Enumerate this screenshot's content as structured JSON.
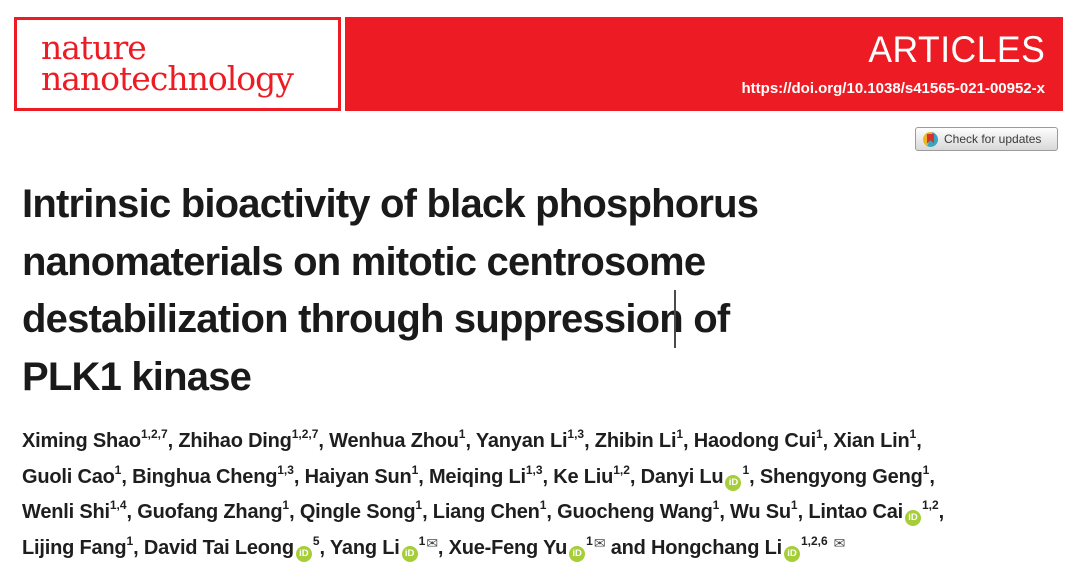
{
  "journal": {
    "name_line1": "nature",
    "name_line2": "nanotechnology"
  },
  "banner": {
    "section_label": "ARTICLES",
    "doi": "https://doi.org/10.1038/s41565-021-00952-x"
  },
  "check_for_updates": {
    "label": "Check for updates"
  },
  "title_lines": [
    "Intrinsic bioactivity of black phosphorus",
    "nanomaterials on mitotic centrosome",
    "destabilization through suppression of",
    "PLK1 kinase"
  ],
  "authors": [
    {
      "name": "Ximing Shao",
      "sup": "1,2,7",
      "orcid": false,
      "mail": false,
      "sep": ", ",
      "br": false
    },
    {
      "name": "Zhihao Ding",
      "sup": "1,2,7",
      "orcid": false,
      "mail": false,
      "sep": ", ",
      "br": false
    },
    {
      "name": "Wenhua Zhou",
      "sup": "1",
      "orcid": false,
      "mail": false,
      "sep": ", ",
      "br": false
    },
    {
      "name": "Yanyan Li",
      "sup": "1,3",
      "orcid": false,
      "mail": false,
      "sep": ", ",
      "br": false
    },
    {
      "name": "Zhibin Li",
      "sup": "1",
      "orcid": false,
      "mail": false,
      "sep": ", ",
      "br": false
    },
    {
      "name": "Haodong Cui",
      "sup": "1",
      "orcid": false,
      "mail": false,
      "sep": ", ",
      "br": false
    },
    {
      "name": "Xian Lin",
      "sup": "1",
      "orcid": false,
      "mail": false,
      "sep": ",",
      "br": true
    },
    {
      "name": "Guoli Cao",
      "sup": "1",
      "orcid": false,
      "mail": false,
      "sep": ", ",
      "br": false
    },
    {
      "name": "Binghua Cheng",
      "sup": "1,3",
      "orcid": false,
      "mail": false,
      "sep": ", ",
      "br": false
    },
    {
      "name": "Haiyan Sun",
      "sup": "1",
      "orcid": false,
      "mail": false,
      "sep": ", ",
      "br": false
    },
    {
      "name": "Meiqing Li",
      "sup": "1,3",
      "orcid": false,
      "mail": false,
      "sep": ", ",
      "br": false
    },
    {
      "name": "Ke Liu",
      "sup": "1,2",
      "orcid": false,
      "mail": false,
      "sep": ", ",
      "br": false
    },
    {
      "name": "Danyi Lu",
      "sup": "1",
      "orcid": true,
      "mail": false,
      "sep": ", ",
      "br": false
    },
    {
      "name": "Shengyong Geng",
      "sup": "1",
      "orcid": false,
      "mail": false,
      "sep": ",",
      "br": true
    },
    {
      "name": "Wenli Shi",
      "sup": "1,4",
      "orcid": false,
      "mail": false,
      "sep": ", ",
      "br": false
    },
    {
      "name": "Guofang Zhang",
      "sup": "1",
      "orcid": false,
      "mail": false,
      "sep": ", ",
      "br": false
    },
    {
      "name": "Qingle Song",
      "sup": "1",
      "orcid": false,
      "mail": false,
      "sep": ", ",
      "br": false
    },
    {
      "name": "Liang Chen",
      "sup": "1",
      "orcid": false,
      "mail": false,
      "sep": ", ",
      "br": false
    },
    {
      "name": "Guocheng Wang",
      "sup": "1",
      "orcid": false,
      "mail": false,
      "sep": ", ",
      "br": false
    },
    {
      "name": "Wu Su",
      "sup": "1",
      "orcid": false,
      "mail": false,
      "sep": ", ",
      "br": false
    },
    {
      "name": "Lintao Cai",
      "sup": "1,2",
      "orcid": true,
      "mail": false,
      "sep": ",",
      "br": true
    },
    {
      "name": "Lijing Fang",
      "sup": "1",
      "orcid": false,
      "mail": false,
      "sep": ", ",
      "br": false
    },
    {
      "name": "David Tai Leong",
      "sup": "5",
      "orcid": true,
      "mail": false,
      "sep": ", ",
      "br": false
    },
    {
      "name": "Yang Li",
      "sup": "1",
      "orcid": true,
      "mail": true,
      "sep": ", ",
      "br": false
    },
    {
      "name": "Xue-Feng Yu",
      "sup": "1",
      "orcid": true,
      "mail": true,
      "sep": " and ",
      "br": false
    },
    {
      "name": "Hongchang Li",
      "sup": "1,2,6",
      "orcid": true,
      "mail": true,
      "mail_gap": true,
      "sep": "",
      "br": false
    }
  ],
  "icons": {
    "orcid_label": "iD",
    "mail_glyph": "✉"
  },
  "colors": {
    "brand_red": "#ed1c24",
    "orcid_green": "#a6ce39"
  }
}
